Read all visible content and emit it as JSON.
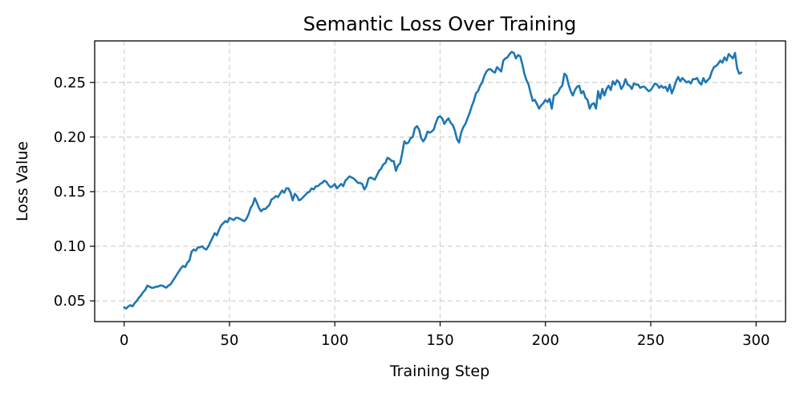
{
  "chart_data": {
    "type": "line",
    "title": "Semantic Loss Over Training",
    "xlabel": "Training Step",
    "ylabel": "Loss Value",
    "xlim": [
      -14,
      314
    ],
    "ylim": [
      0.031,
      0.288
    ],
    "x_ticks": [
      0,
      50,
      100,
      150,
      200,
      250,
      300
    ],
    "y_ticks": [
      0.05,
      0.1,
      0.15,
      0.2,
      0.25
    ],
    "x_tick_labels": [
      "0",
      "50",
      "100",
      "150",
      "200",
      "250",
      "300"
    ],
    "y_tick_labels": [
      "0.05",
      "0.10",
      "0.15",
      "0.20",
      "0.25"
    ],
    "grid": true,
    "legend": "none",
    "series_color": "#1f77b4",
    "series": [
      {
        "x_start": 0,
        "x_step": 1,
        "values": [
          0.044,
          0.043,
          0.045,
          0.046,
          0.045,
          0.048,
          0.05,
          0.053,
          0.055,
          0.058,
          0.06,
          0.064,
          0.063,
          0.062,
          0.062,
          0.063,
          0.063,
          0.064,
          0.064,
          0.063,
          0.062,
          0.064,
          0.065,
          0.068,
          0.071,
          0.074,
          0.077,
          0.08,
          0.082,
          0.081,
          0.085,
          0.087,
          0.095,
          0.097,
          0.096,
          0.099,
          0.099,
          0.1,
          0.098,
          0.097,
          0.1,
          0.104,
          0.108,
          0.112,
          0.11,
          0.115,
          0.119,
          0.121,
          0.123,
          0.122,
          0.126,
          0.125,
          0.124,
          0.126,
          0.126,
          0.125,
          0.124,
          0.123,
          0.125,
          0.129,
          0.135,
          0.138,
          0.144,
          0.14,
          0.135,
          0.132,
          0.134,
          0.134,
          0.136,
          0.138,
          0.143,
          0.144,
          0.146,
          0.145,
          0.148,
          0.151,
          0.149,
          0.153,
          0.153,
          0.149,
          0.142,
          0.148,
          0.146,
          0.142,
          0.143,
          0.145,
          0.147,
          0.149,
          0.15,
          0.153,
          0.152,
          0.155,
          0.155,
          0.157,
          0.158,
          0.16,
          0.159,
          0.156,
          0.154,
          0.155,
          0.157,
          0.153,
          0.155,
          0.157,
          0.155,
          0.16,
          0.162,
          0.164,
          0.163,
          0.162,
          0.16,
          0.158,
          0.158,
          0.157,
          0.152,
          0.155,
          0.162,
          0.163,
          0.162,
          0.161,
          0.165,
          0.169,
          0.171,
          0.175,
          0.176,
          0.181,
          0.18,
          0.178,
          0.178,
          0.169,
          0.174,
          0.176,
          0.185,
          0.196,
          0.194,
          0.195,
          0.199,
          0.2,
          0.208,
          0.21,
          0.207,
          0.199,
          0.196,
          0.199,
          0.205,
          0.204,
          0.205,
          0.207,
          0.213,
          0.218,
          0.219,
          0.217,
          0.212,
          0.215,
          0.217,
          0.213,
          0.211,
          0.206,
          0.198,
          0.195,
          0.204,
          0.209,
          0.212,
          0.217,
          0.222,
          0.228,
          0.233,
          0.24,
          0.242,
          0.247,
          0.25,
          0.256,
          0.26,
          0.262,
          0.262,
          0.26,
          0.259,
          0.264,
          0.262,
          0.26,
          0.27,
          0.272,
          0.273,
          0.276,
          0.278,
          0.277,
          0.272,
          0.275,
          0.274,
          0.267,
          0.258,
          0.252,
          0.248,
          0.24,
          0.233,
          0.234,
          0.23,
          0.226,
          0.229,
          0.231,
          0.234,
          0.232,
          0.235,
          0.226,
          0.238,
          0.239,
          0.241,
          0.245,
          0.247,
          0.258,
          0.256,
          0.248,
          0.242,
          0.238,
          0.243,
          0.246,
          0.247,
          0.24,
          0.242,
          0.236,
          0.234,
          0.226,
          0.23,
          0.231,
          0.226,
          0.242,
          0.235,
          0.244,
          0.238,
          0.244,
          0.247,
          0.243,
          0.251,
          0.248,
          0.252,
          0.25,
          0.244,
          0.247,
          0.253,
          0.248,
          0.247,
          0.244,
          0.249,
          0.248,
          0.248,
          0.245,
          0.246,
          0.246,
          0.244,
          0.242,
          0.243,
          0.246,
          0.249,
          0.248,
          0.245,
          0.247,
          0.245,
          0.246,
          0.242,
          0.248,
          0.24,
          0.245,
          0.251,
          0.255,
          0.251,
          0.254,
          0.252,
          0.25,
          0.251,
          0.249,
          0.253,
          0.253,
          0.254,
          0.25,
          0.248,
          0.254,
          0.25,
          0.252,
          0.254,
          0.26,
          0.264,
          0.265,
          0.267,
          0.27,
          0.268,
          0.273,
          0.27,
          0.276,
          0.274,
          0.272,
          0.277,
          0.263,
          0.258,
          0.259
        ]
      }
    ]
  }
}
